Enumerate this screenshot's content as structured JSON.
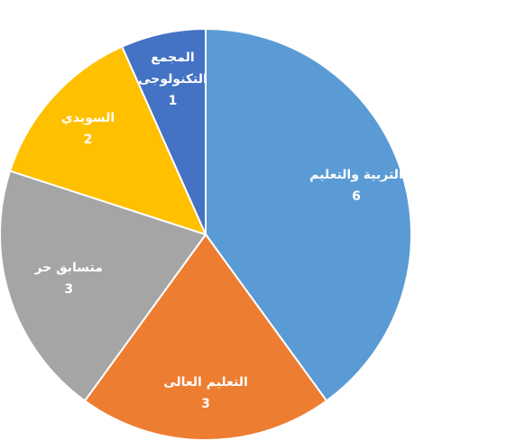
{
  "chart_data": {
    "type": "pie",
    "categories": [
      "التربية والتعليم",
      "التعليم العالى",
      "متسابق حر",
      "السويدي",
      "المجمع التكنولوجى"
    ],
    "values": [
      6,
      3,
      3,
      2,
      1
    ],
    "colors": [
      "#5b9bd5",
      "#ed7d31",
      "#a5a5a5",
      "#ffc000",
      "#4472c4"
    ]
  }
}
